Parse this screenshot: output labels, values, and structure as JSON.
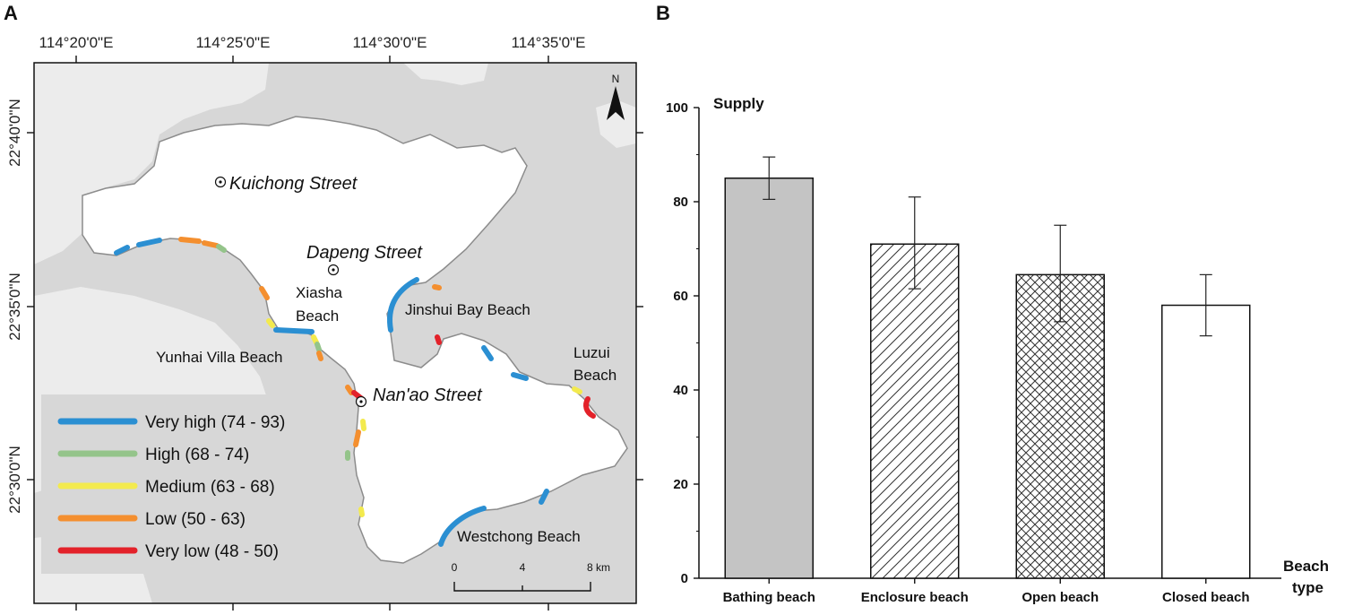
{
  "panel_a": {
    "label": "A",
    "lon_ticks": [
      "114°20'0\"E",
      "114°25'0\"E",
      "114°30'0\"E",
      "114°35'0\"E"
    ],
    "lat_ticks": [
      "22°40'0\"N",
      "22°35'0\"N",
      "22°30'0\"N"
    ],
    "north_label": "N",
    "places": {
      "kuichong": "Kuichong Street",
      "dapeng": "Dapeng Street",
      "nanao": "Nan'ao Street"
    },
    "beaches": {
      "xiasha_line1": "Xiasha",
      "xiasha_line2": "Beach",
      "jinshui": "Jinshui Bay Beach",
      "yunhai": "Yunhai Villa Beach",
      "luzui_line1": "Luzui",
      "luzui_line2": "Beach",
      "westchong": "Westchong Beach"
    },
    "legend": [
      {
        "label": "Very high (74 - 93)",
        "color": "#2b8fd2"
      },
      {
        "label": "High (68 - 74)",
        "color": "#94c48a"
      },
      {
        "label": "Medium (63 - 68)",
        "color": "#f3ea4e"
      },
      {
        "label": "Low (50 - 63)",
        "color": "#f48f2f"
      },
      {
        "label": "Very low (48 - 50)",
        "color": "#e3222a"
      }
    ],
    "scale": {
      "ticks": [
        "0",
        "4",
        "8 km"
      ]
    }
  },
  "chart_data": {
    "label": "B",
    "type": "bar",
    "categories": [
      "Bathing beach",
      "Enclosure beach",
      "Open beach",
      "Closed beach"
    ],
    "values": [
      85,
      71,
      64.5,
      58
    ],
    "error_low": [
      80.5,
      61.5,
      54.5,
      51.5
    ],
    "error_high": [
      89.5,
      81,
      75,
      64.5
    ],
    "patterns": [
      "solid-grey",
      "diagonal-hatch",
      "cross-hatch",
      "none"
    ],
    "ylabel": "Supply",
    "xlabel_line1": "Beach",
    "xlabel_line2": "type",
    "ylim": [
      0,
      100
    ],
    "yticks": [
      "0",
      "20",
      "40",
      "60",
      "80",
      "100"
    ]
  }
}
